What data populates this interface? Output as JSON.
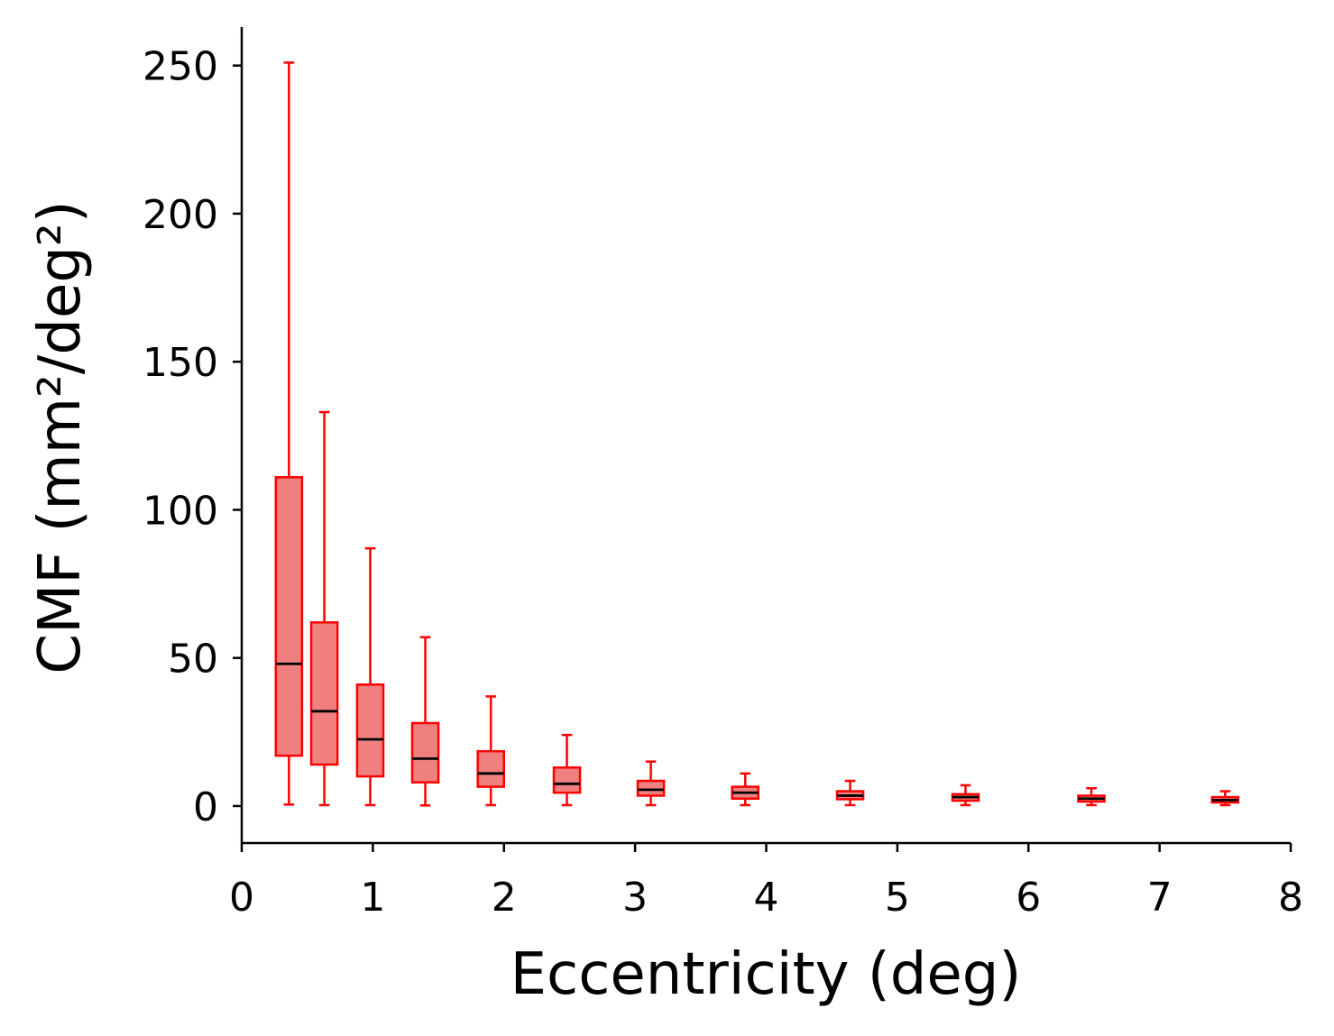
{
  "chart_data": {
    "type": "box",
    "xlabel": "Eccentricity (deg)",
    "ylabel": "CMF (mm²/deg²)",
    "xlim": [
      0,
      8
    ],
    "ylim": [
      -12.5,
      263
    ],
    "xticks": [
      0,
      1,
      2,
      3,
      4,
      5,
      6,
      7,
      8
    ],
    "yticks": [
      0,
      50,
      100,
      150,
      200,
      250
    ],
    "grid": false,
    "colors": {
      "box_edge": "#ff0000",
      "box_fill": "#f08080",
      "median": "#000000",
      "axis": "#000000"
    },
    "boxes": [
      {
        "x": 0.36,
        "width": 0.2,
        "whisker_low": 0.5,
        "q1": 17,
        "median": 48,
        "q3": 111,
        "whisker_high": 251
      },
      {
        "x": 0.63,
        "width": 0.2,
        "whisker_low": 0.3,
        "q1": 14,
        "median": 32,
        "q3": 62,
        "whisker_high": 133
      },
      {
        "x": 0.98,
        "width": 0.2,
        "whisker_low": 0.3,
        "q1": 10,
        "median": 22.5,
        "q3": 41,
        "whisker_high": 87
      },
      {
        "x": 1.4,
        "width": 0.2,
        "whisker_low": 0.2,
        "q1": 8,
        "median": 16,
        "q3": 28,
        "whisker_high": 57
      },
      {
        "x": 1.9,
        "width": 0.2,
        "whisker_low": 0.3,
        "q1": 6.5,
        "median": 11,
        "q3": 18.5,
        "whisker_high": 37
      },
      {
        "x": 2.48,
        "width": 0.2,
        "whisker_low": 0.3,
        "q1": 4.5,
        "median": 7.5,
        "q3": 13,
        "whisker_high": 24
      },
      {
        "x": 3.12,
        "width": 0.2,
        "whisker_low": 0.3,
        "q1": 3.5,
        "median": 5.5,
        "q3": 8.5,
        "whisker_high": 15
      },
      {
        "x": 3.84,
        "width": 0.2,
        "whisker_low": 0.3,
        "q1": 2.5,
        "median": 4.5,
        "q3": 6.5,
        "whisker_high": 11
      },
      {
        "x": 4.64,
        "width": 0.2,
        "whisker_low": 0.3,
        "q1": 2.3,
        "median": 3.5,
        "q3": 5,
        "whisker_high": 8.5
      },
      {
        "x": 5.52,
        "width": 0.2,
        "whisker_low": 0.3,
        "q1": 1.8,
        "median": 3,
        "q3": 4,
        "whisker_high": 7
      },
      {
        "x": 6.48,
        "width": 0.2,
        "whisker_low": 0.3,
        "q1": 1.5,
        "median": 2.5,
        "q3": 3.5,
        "whisker_high": 6
      },
      {
        "x": 7.5,
        "width": 0.2,
        "whisker_low": 0.3,
        "q1": 1.2,
        "median": 2,
        "q3": 3,
        "whisker_high": 5
      }
    ]
  }
}
